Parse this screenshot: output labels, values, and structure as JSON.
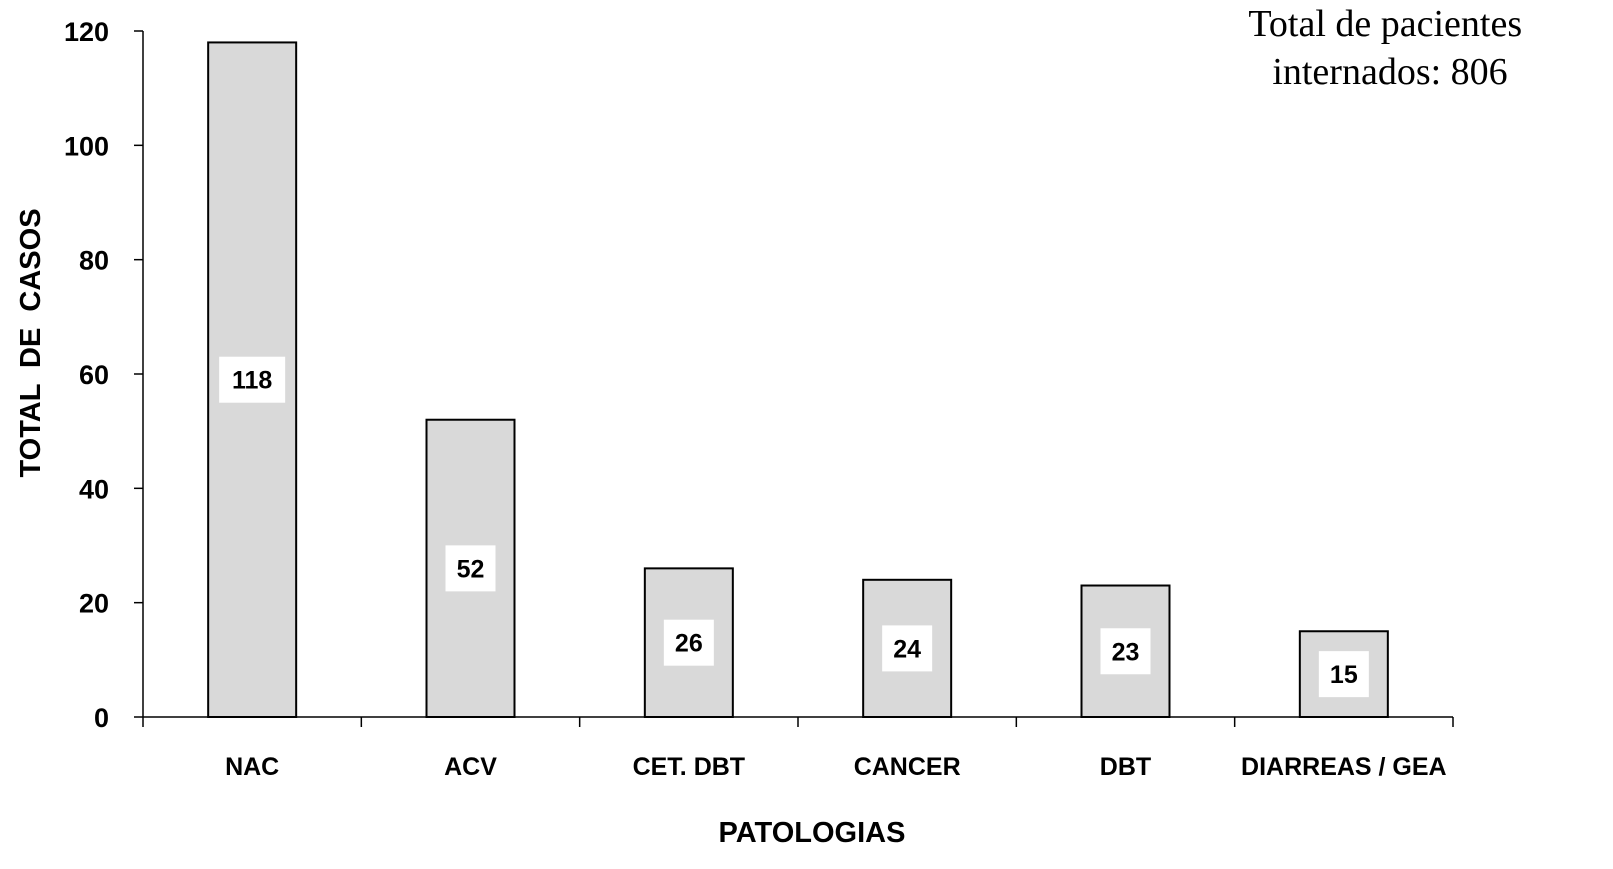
{
  "chart_data": {
    "type": "bar",
    "categories": [
      "NAC",
      "ACV",
      "CET. DBT",
      "CANCER",
      "DBT",
      "DIARREAS / GEA"
    ],
    "values": [
      118,
      52,
      26,
      24,
      23,
      15
    ],
    "data_labels": [
      "118",
      "52",
      "26",
      "24",
      "23",
      "15"
    ],
    "xlabel": "PATOLOGIAS",
    "ylabel": "TOTAL  DE  CASOS",
    "ylim": [
      0,
      120
    ],
    "yticks": [
      0,
      20,
      40,
      60,
      80,
      100,
      120
    ],
    "ytick_labels": [
      "0",
      "20",
      "40",
      "60",
      "80",
      "100",
      "120"
    ],
    "annotation": [
      "Total de pacientes",
      "internados: 806"
    ],
    "grid": false,
    "legend": "none",
    "bar_color": "#d9d9d9",
    "bar_edge_color": "#000000"
  }
}
